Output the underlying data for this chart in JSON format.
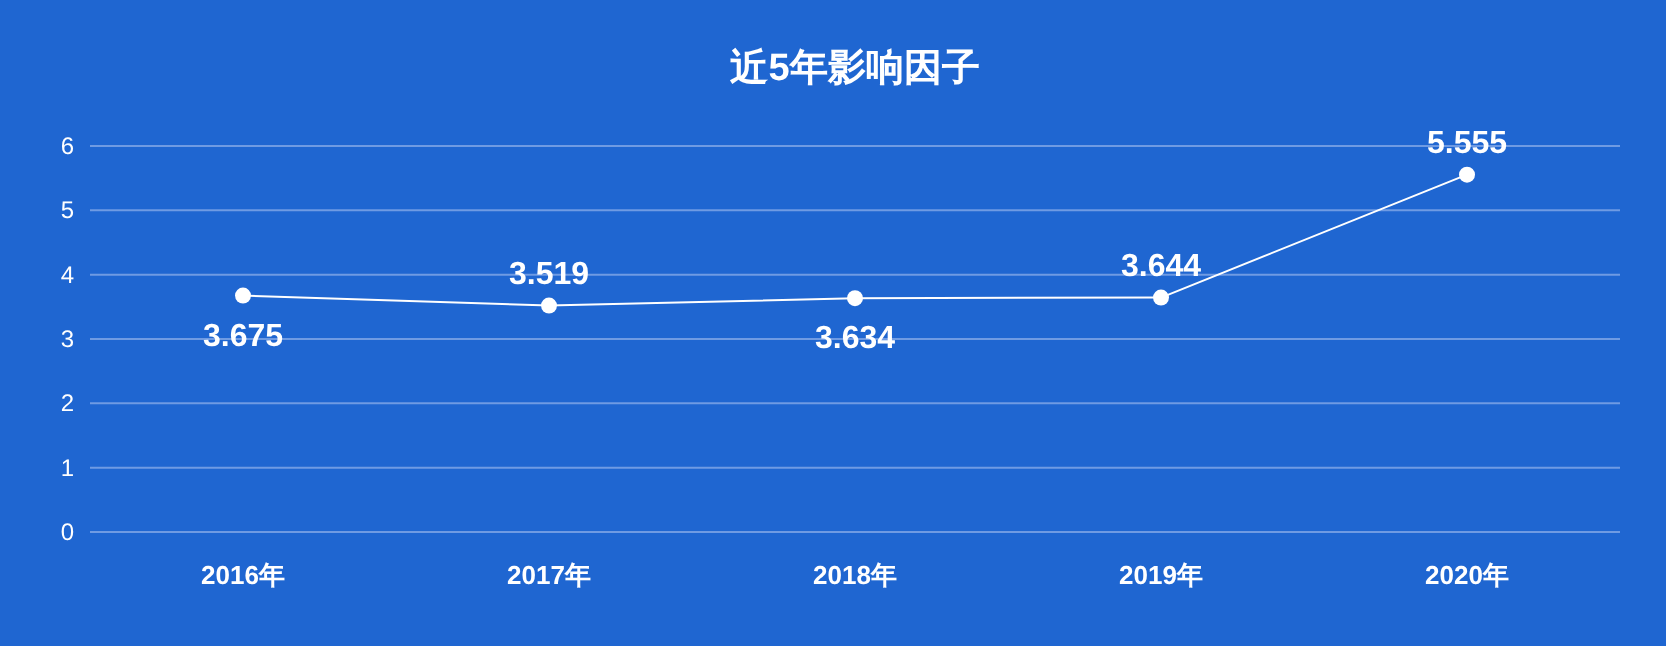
{
  "chart_data": {
    "type": "line",
    "title": "近5年影响因子",
    "categories": [
      "2016年",
      "2017年",
      "2018年",
      "2019年",
      "2020年"
    ],
    "series": [
      {
        "color": "#ffffff",
        "values": [
          3.675,
          3.519,
          3.634,
          3.644,
          5.555
        ]
      }
    ],
    "ylim": [
      0,
      6
    ],
    "yticks": [
      0,
      1,
      2,
      3,
      4,
      5,
      6
    ],
    "grid": "y",
    "marker": "circle",
    "line_style": "solid",
    "data_labels": true
  }
}
